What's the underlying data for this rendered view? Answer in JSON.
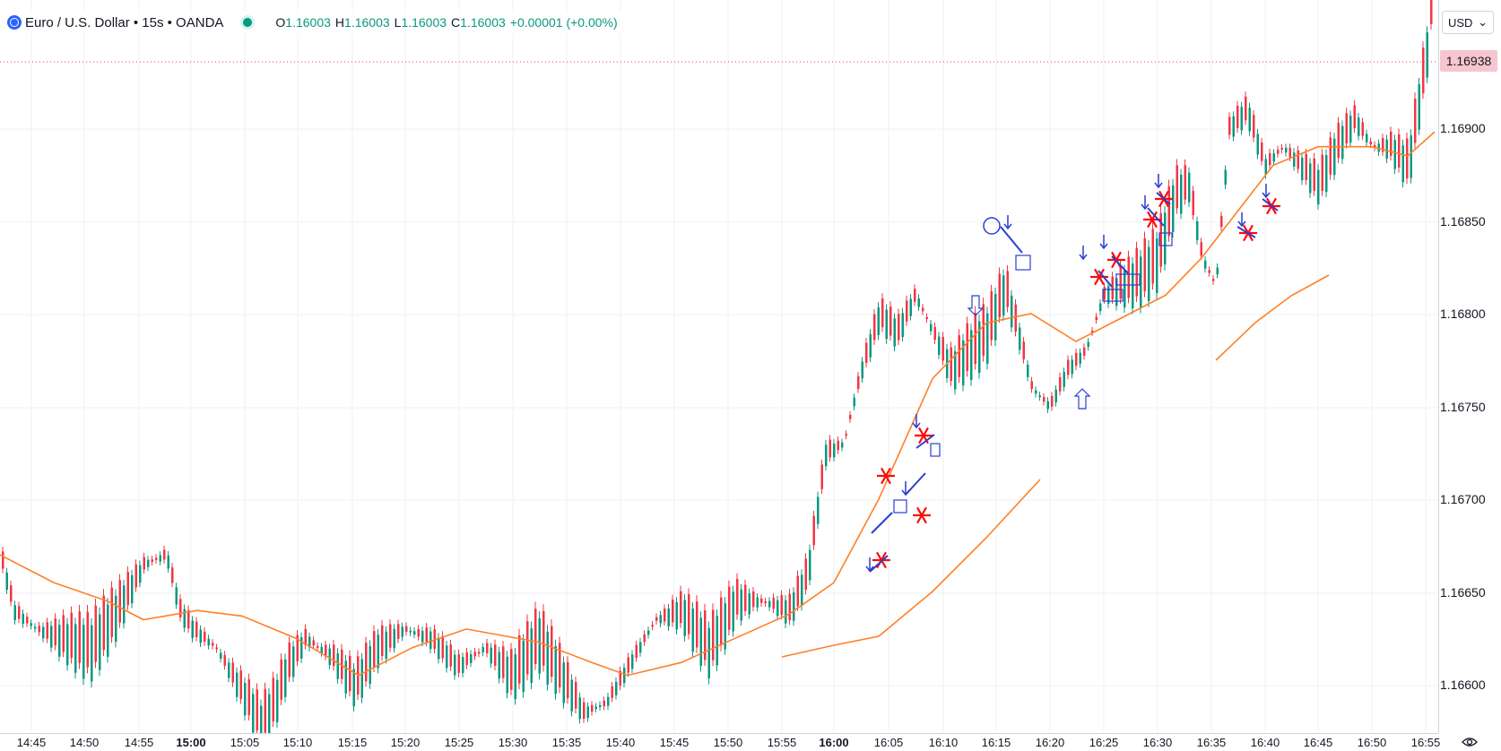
{
  "legend": {
    "symbol": "Euro / U.S. Dollar • 15s • OANDA",
    "open_label": "O",
    "open": "1.16003",
    "high_label": "H",
    "high": "1.16003",
    "low_label": "L",
    "low": "1.16003",
    "close_label": "C",
    "close": "1.16003",
    "change": "+0.00001 (+0.00%)",
    "status_color": "#089981"
  },
  "currency_button": {
    "label": "USD",
    "icon": "chevron-down-icon"
  },
  "current_price": "1.16938",
  "colors": {
    "up": "#089981",
    "down": "#f23645",
    "ma": "#ff7f27",
    "drawing": "#2b3fcf",
    "star": "#ff0a0a",
    "price_line": "#f23645"
  },
  "price_axis": [
    "1.16900",
    "1.16850",
    "1.16800",
    "1.16750",
    "1.16700",
    "1.16650",
    "1.16600"
  ],
  "time_axis": [
    "14:45",
    "14:50",
    "14:55",
    "15:00",
    "15:05",
    "15:10",
    "15:15",
    "15:20",
    "15:25",
    "15:30",
    "15:35",
    "15:40",
    "15:45",
    "15:50",
    "15:55",
    "16:00",
    "16:05",
    "16:10",
    "16:15",
    "16:20",
    "16:25",
    "16:30",
    "16:35",
    "16:40",
    "16:45",
    "16:50",
    "16:55"
  ],
  "time_axis_bold": [
    "15:00",
    "16:00"
  ],
  "settings": {
    "icon": "eye-settings-icon"
  }
}
